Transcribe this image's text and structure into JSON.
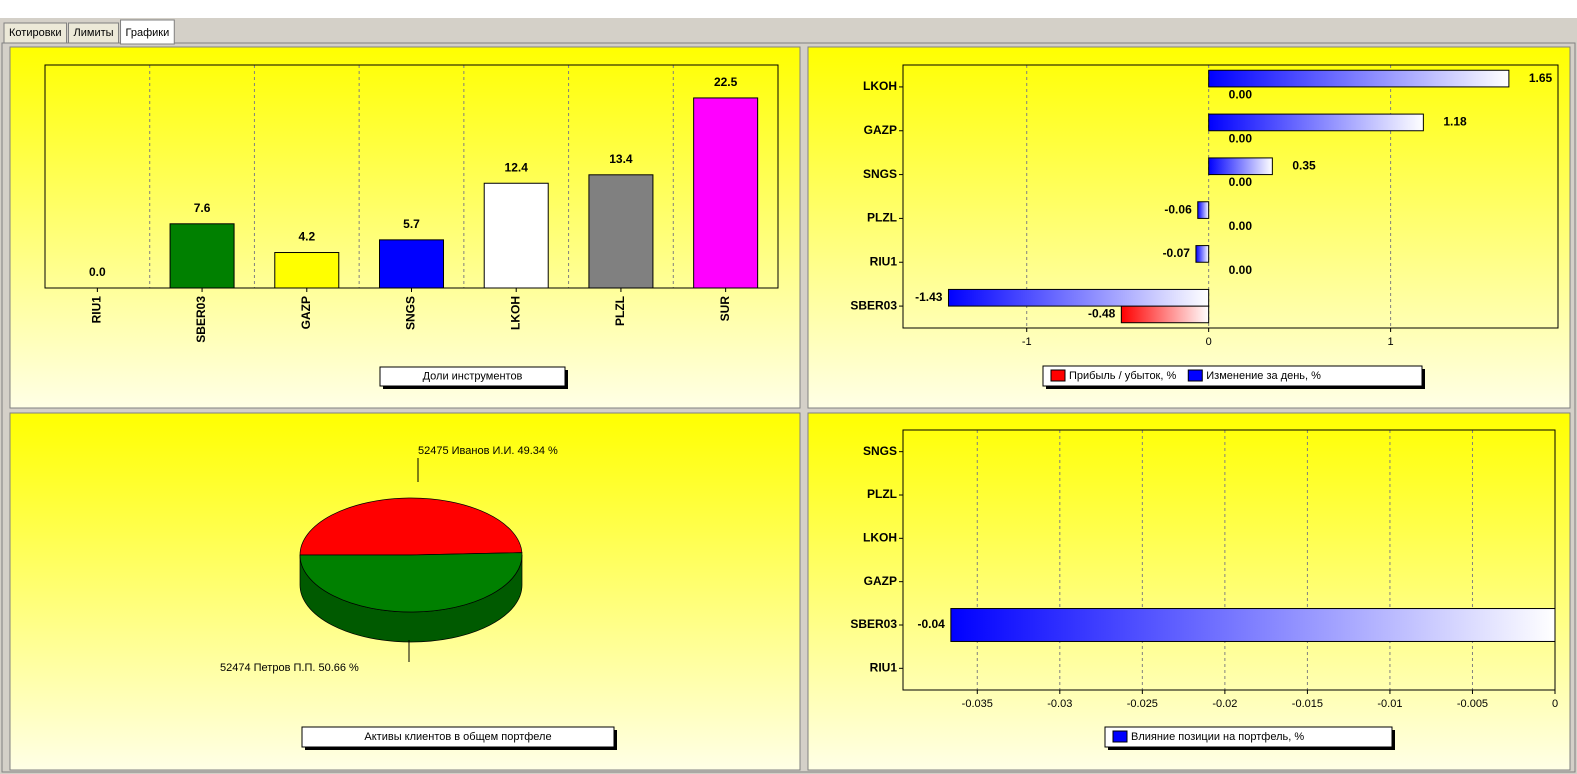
{
  "tabs": [
    "Котировки",
    "Лимиты",
    "Графики"
  ],
  "active_tab": 2,
  "chart_data": [
    {
      "type": "bar",
      "legend_label": "Доли инструментов",
      "categories": [
        "RIU1",
        "SBER03",
        "GAZP",
        "SNGS",
        "LKOH",
        "PLZL",
        "SUR"
      ],
      "values": [
        0,
        7.6,
        4.2,
        5.7,
        12.4,
        13.4,
        22.5
      ],
      "value_labels": [
        "0.0",
        "7.6",
        "4.2",
        "5.7",
        "12.4",
        "13.4",
        "22.5"
      ],
      "colors": [
        null,
        "#008000",
        "#ffff00",
        "#0000ff",
        "#ffffff",
        "#808080",
        "#ff00ff"
      ],
      "ylim": [
        0,
        26.4
      ],
      "grid": true
    },
    {
      "type": "hbar",
      "categories": [
        "LKOH",
        "GAZP",
        "SNGS",
        "PLZL",
        "RIU1",
        "SBER03"
      ],
      "series": [
        {
          "name": "Прибыль / убыток, %",
          "color": "#ff0000",
          "values": [
            0,
            0,
            0,
            0,
            0,
            -0.48
          ],
          "value_labels": [
            "0.00",
            "0.00",
            "0.00",
            "0.00",
            "0.00",
            "-0.48"
          ]
        },
        {
          "name": "Изменение за день, %",
          "color": "#0000ff",
          "values": [
            1.65,
            1.18,
            0.35,
            -0.06,
            -0.07,
            -1.43
          ],
          "value_labels": [
            "1.65",
            "1.18",
            "0.35",
            "-0.06",
            "-0.07",
            "-1.43"
          ]
        }
      ],
      "xlim": [
        -1.68,
        1.92
      ],
      "xticks": [
        -1,
        0,
        1
      ],
      "grid": true
    },
    {
      "type": "pie",
      "legend_label": "Активы клиентов в общем портфеле",
      "values": [
        49.34,
        50.66
      ],
      "value_labels": [
        "52475 Иванов И.И. 49.34 %",
        "52474 Петров П.П. 50.66 %"
      ],
      "colors": [
        "#ff0000",
        "#008000"
      ]
    },
    {
      "type": "hbar",
      "categories": [
        "SNGS",
        "PLZL",
        "LKOH",
        "GAZP",
        "SBER03",
        "RIU1"
      ],
      "series": [
        {
          "name": "Влияние позиции на портфель, %",
          "color": "#0000ff",
          "values": [
            0,
            0,
            0,
            0,
            -0.0366,
            0
          ],
          "value_labels": [
            null,
            null,
            null,
            null,
            "-0.04",
            null
          ]
        }
      ],
      "xlim": [
        -0.0395,
        0
      ],
      "xticks": [
        -0.035,
        -0.03,
        -0.025,
        -0.02,
        -0.015,
        -0.01,
        -0.005,
        0
      ],
      "grid": true
    }
  ]
}
